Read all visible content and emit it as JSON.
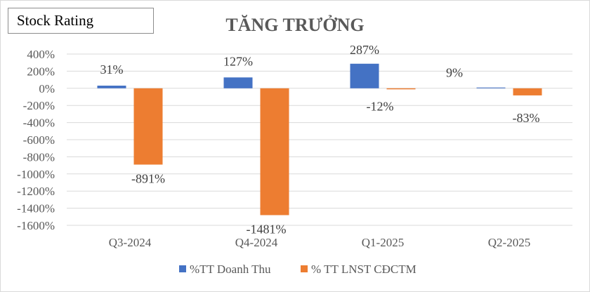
{
  "badge": {
    "label": "Stock Rating"
  },
  "chart_data": {
    "type": "bar",
    "title": "TĂNG TRƯỞNG",
    "xlabel": "",
    "ylabel": "",
    "categories": [
      "Q3-2024",
      "Q4-2024",
      "Q1-2025",
      "Q2-2025"
    ],
    "series": [
      {
        "name": "%TT Doanh Thu",
        "color": "#4472c4",
        "values": [
          31,
          127,
          287,
          9
        ],
        "labels": [
          "31%",
          "127%",
          "287%",
          "9%"
        ]
      },
      {
        "name": "% TT LNST CĐCTM",
        "color": "#ed7d31",
        "values": [
          -891,
          -1481,
          -12,
          -83
        ],
        "labels": [
          "-891%",
          "-1481%",
          "-12%",
          "-83%"
        ]
      }
    ],
    "ylim": [
      -1600,
      400
    ],
    "yticks": [
      400,
      200,
      0,
      -200,
      -400,
      -600,
      -800,
      -1000,
      -1200,
      -1400,
      -1600
    ],
    "ytick_labels": [
      "400%",
      "200%",
      "0%",
      "-200%",
      "-400%",
      "-600%",
      "-800%",
      "-1000%",
      "-1200%",
      "-1400%",
      "-1600%"
    ],
    "grid": true,
    "legend": "bottom"
  }
}
